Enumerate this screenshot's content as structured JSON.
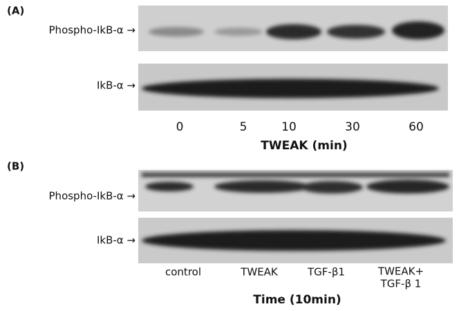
{
  "panels": [
    {
      "label": "(A)",
      "blots": [
        {
          "label": "Phospho-IkB-α →"
        },
        {
          "label": "IkB-α →"
        }
      ],
      "lanes": [
        "0",
        "5",
        "10",
        "30",
        "60"
      ],
      "axis_title": "TWEAK (min)"
    },
    {
      "label": "(B)",
      "blots": [
        {
          "label": "Phospho-IkB-α →"
        },
        {
          "label": "IkB-α →"
        }
      ],
      "lanes": [
        "control",
        "TWEAK",
        "TGF-β1",
        "TWEAK+",
        "TGF-β 1"
      ],
      "axis_title": "Time (10min)"
    }
  ]
}
